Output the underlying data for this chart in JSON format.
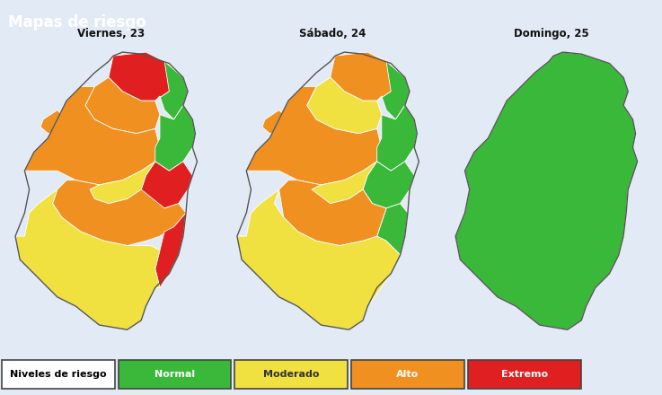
{
  "title": "Mapas de riesgo",
  "title_bg_color": "#3ab8be",
  "title_text_color": "#ffffff",
  "days": [
    "Viernes, 23",
    "Sábado, 24",
    "Domingo, 25"
  ],
  "legend_items": [
    {
      "label": "Niveles de riesgo",
      "color": "#ffffff",
      "text_color": "#000000"
    },
    {
      "label": "Normal",
      "color": "#3ab83a",
      "text_color": "#ffffff"
    },
    {
      "label": "Moderado",
      "color": "#f0e040",
      "text_color": "#333333"
    },
    {
      "label": "Alto",
      "color": "#f09020",
      "text_color": "#ffffff"
    },
    {
      "label": "Extremo",
      "color": "#e02020",
      "text_color": "#ffffff"
    }
  ],
  "map_bg_color": "#d8e8f4",
  "outer_bg_color": "#e2ebf5",
  "colors": {
    "green": "#3ab83a",
    "yellow": "#f0e040",
    "orange": "#f09020",
    "red": "#e02020",
    "dark_orange": "#c86010"
  }
}
